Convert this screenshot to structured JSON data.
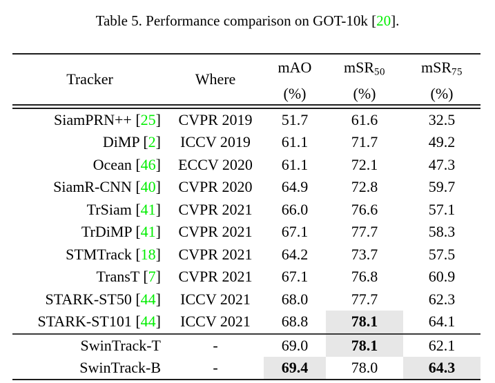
{
  "caption": {
    "prefix": "Table 5. Performance comparison on GOT-10k [",
    "ref": "20",
    "suffix": "]."
  },
  "colors": {
    "citation_green": "#00ee00",
    "highlight_gray": "#e7e7e7",
    "rule_black": "#1c1c1c"
  },
  "table": {
    "header": {
      "tracker_label": "Tracker",
      "where_label": "Where",
      "metrics": [
        {
          "name": "mAO",
          "sub": "",
          "unit": "(%)"
        },
        {
          "name": "mSR",
          "sub": "50",
          "unit": "(%)"
        },
        {
          "name": "mSR",
          "sub": "75",
          "unit": "(%)"
        }
      ]
    },
    "rows": [
      {
        "tracker": "SiamPRN++",
        "cite": "25",
        "where": "CVPR 2019",
        "section": 1,
        "cells": [
          {
            "v": "51.7"
          },
          {
            "v": "61.6"
          },
          {
            "v": "32.5"
          }
        ]
      },
      {
        "tracker": "DiMP",
        "cite": "2",
        "where": "ICCV 2019",
        "section": 1,
        "cells": [
          {
            "v": "61.1"
          },
          {
            "v": "71.7"
          },
          {
            "v": "49.2"
          }
        ]
      },
      {
        "tracker": "Ocean",
        "cite": "46",
        "where": "ECCV 2020",
        "section": 1,
        "cells": [
          {
            "v": "61.1"
          },
          {
            "v": "72.1"
          },
          {
            "v": "47.3"
          }
        ]
      },
      {
        "tracker": "SiamR-CNN",
        "cite": "40",
        "where": "CVPR 2020",
        "section": 1,
        "cells": [
          {
            "v": "64.9"
          },
          {
            "v": "72.8"
          },
          {
            "v": "59.7"
          }
        ]
      },
      {
        "tracker": "TrSiam",
        "cite": "41",
        "where": "CVPR 2021",
        "section": 1,
        "cells": [
          {
            "v": "66.0"
          },
          {
            "v": "76.6"
          },
          {
            "v": "57.1"
          }
        ]
      },
      {
        "tracker": "TrDiMP",
        "cite": "41",
        "where": "CVPR 2021",
        "section": 1,
        "cells": [
          {
            "v": "67.1"
          },
          {
            "v": "77.7"
          },
          {
            "v": "58.3"
          }
        ]
      },
      {
        "tracker": "STMTrack",
        "cite": "18",
        "where": "CVPR 2021",
        "section": 1,
        "cells": [
          {
            "v": "64.2"
          },
          {
            "v": "73.7"
          },
          {
            "v": "57.5"
          }
        ]
      },
      {
        "tracker": "TransT",
        "cite": "7",
        "where": "CVPR 2021",
        "section": 1,
        "cells": [
          {
            "v": "67.1"
          },
          {
            "v": "76.8"
          },
          {
            "v": "60.9"
          }
        ]
      },
      {
        "tracker": "STARK-ST50",
        "cite": "44",
        "where": "ICCV 2021",
        "section": 1,
        "cells": [
          {
            "v": "68.0"
          },
          {
            "v": "77.7"
          },
          {
            "v": "62.3"
          }
        ]
      },
      {
        "tracker": "STARK-ST101",
        "cite": "44",
        "where": "ICCV 2021",
        "section": 1,
        "cells": [
          {
            "v": "68.8"
          },
          {
            "v": "78.1",
            "bold": true,
            "hl": true
          },
          {
            "v": "64.1"
          }
        ]
      },
      {
        "tracker": "SwinTrack-T",
        "cite": null,
        "where": "-",
        "section": 2,
        "sep_above": true,
        "cells": [
          {
            "v": "69.0"
          },
          {
            "v": "78.1",
            "bold": true,
            "hl": true
          },
          {
            "v": "62.1"
          }
        ]
      },
      {
        "tracker": "SwinTrack-B",
        "cite": null,
        "where": "-",
        "section": 2,
        "cells": [
          {
            "v": "69.4",
            "bold": true,
            "hl": true
          },
          {
            "v": "78.0"
          },
          {
            "v": "64.3",
            "bold": true,
            "hl": true
          }
        ]
      }
    ]
  }
}
